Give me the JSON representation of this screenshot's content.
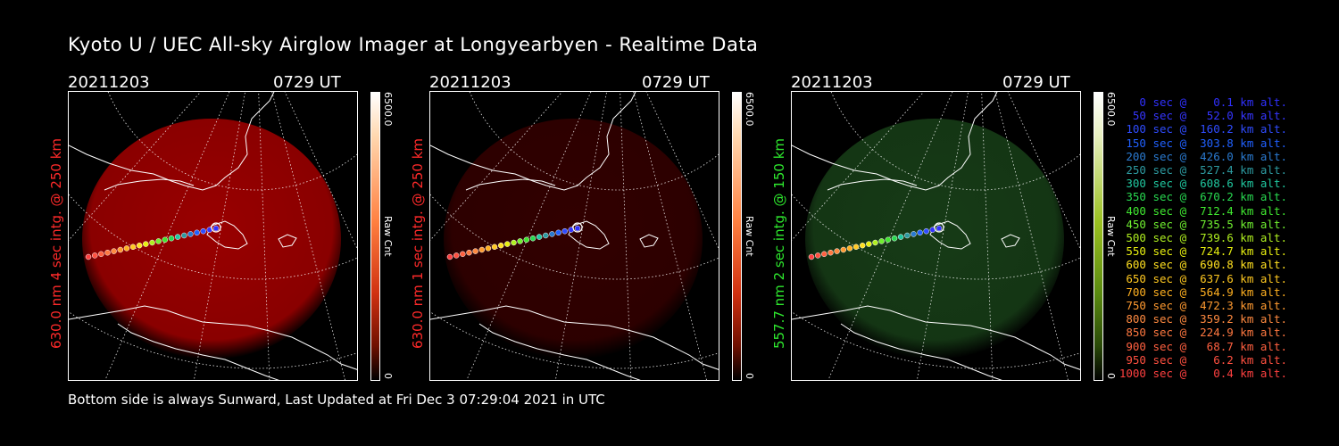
{
  "title": "Kyoto U / UEC All-sky Airglow Imager at Longyearbyen - Realtime Data",
  "footer": "Bottom side is always Sunward, Last Updated at Fri Dec  3 07:29:04 2021 in UTC",
  "panels": [
    {
      "date": "20211203",
      "ut": "0729 UT",
      "label": "630.0 nm 4 sec intg. @ 250 km",
      "label_color": "#ff2a2a",
      "cbar_max": "6500.0",
      "cbar_min": "0",
      "cbar_label": "Raw Cnt",
      "cmap": "red",
      "glow_color": "#b40000",
      "glow_opacity": 0.85
    },
    {
      "date": "20211203",
      "ut": "0729 UT",
      "label": "630.0 nm 1 sec intg. @ 250 km",
      "label_color": "#ff2a2a",
      "cbar_max": "6500.0",
      "cbar_min": "0",
      "cbar_label": "Raw Cnt",
      "cmap": "red",
      "glow_color": "#5a0000",
      "glow_opacity": 0.55
    },
    {
      "date": "20211203",
      "ut": "0729 UT",
      "label": "557.7 nm 2 sec intg. @ 150 km",
      "label_color": "#2ee82e",
      "cbar_max": "6500.0",
      "cbar_min": "0",
      "cbar_label": "Raw Cnt",
      "cmap": "green",
      "glow_color": "#1c4a1c",
      "glow_opacity": 0.8
    }
  ],
  "legend": [
    {
      "text": "0 sec @    0.1 km alt.",
      "color": "#3030ff"
    },
    {
      "text": "50 sec @   52.0 km alt.",
      "color": "#3535ff"
    },
    {
      "text": "100 sec @  160.2 km alt.",
      "color": "#2f4cff"
    },
    {
      "text": "150 sec @  303.8 km alt.",
      "color": "#2060ff"
    },
    {
      "text": "200 sec @  426.0 km alt.",
      "color": "#2a7ad0"
    },
    {
      "text": "250 sec @  527.4 km alt.",
      "color": "#2d9aa0"
    },
    {
      "text": "300 sec @  608.6 km alt.",
      "color": "#20c8a0"
    },
    {
      "text": "350 sec @  670.2 km alt.",
      "color": "#28d850"
    },
    {
      "text": "400 sec @  712.4 km alt.",
      "color": "#40e830"
    },
    {
      "text": "450 sec @  735.5 km alt.",
      "color": "#70f030"
    },
    {
      "text": "500 sec @  739.6 km alt.",
      "color": "#b0f020"
    },
    {
      "text": "550 sec @  724.7 km alt.",
      "color": "#e8f010"
    },
    {
      "text": "600 sec @  690.8 km alt.",
      "color": "#ffe020"
    },
    {
      "text": "650 sec @  637.6 km alt.",
      "color": "#ffc820"
    },
    {
      "text": "700 sec @  564.9 km alt.",
      "color": "#ffb020"
    },
    {
      "text": "750 sec @  472.3 km alt.",
      "color": "#ff9a30"
    },
    {
      "text": "800 sec @  359.2 km alt.",
      "color": "#ff8a40"
    },
    {
      "text": "850 sec @  224.9 km alt.",
      "color": "#ff7840"
    },
    {
      "text": "900 sec @   68.7 km alt.",
      "color": "#ff6040"
    },
    {
      "text": "950 sec @    6.2 km alt.",
      "color": "#ff5040"
    },
    {
      "text": "1000 sec @    0.4 km alt.",
      "color": "#ff4040"
    }
  ]
}
